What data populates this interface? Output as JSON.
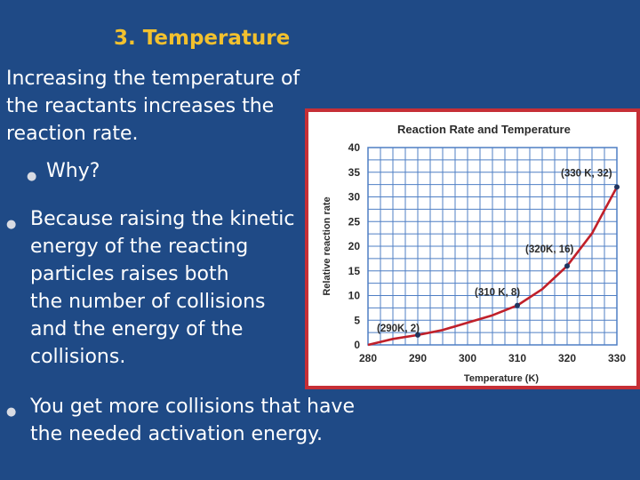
{
  "slide": {
    "title": "3. Temperature",
    "intro_lines": [
      "Increasing the temperature of",
      "the reactants increases the",
      "reaction rate."
    ],
    "why": "Why?",
    "because_lines": [
      "Because raising the kinetic",
      "energy  of the reacting",
      "particles raises both",
      "the number of collisions",
      "and the energy of the",
      "collisions."
    ],
    "more_lines": [
      "You get more collisions that have",
      "the needed activation energy."
    ]
  },
  "chart_data": {
    "type": "line",
    "title": "Reaction Rate and Temperature",
    "xlabel": "Temperature (K)",
    "ylabel": "Relative reaction rate",
    "xlim": [
      280,
      330
    ],
    "ylim": [
      0,
      40
    ],
    "x_ticks": [
      280,
      290,
      300,
      310,
      320,
      330
    ],
    "y_ticks": [
      0,
      5,
      10,
      15,
      20,
      25,
      30,
      35,
      40
    ],
    "grid": true,
    "series": [
      {
        "x": [
          280,
          285,
          290,
          295,
          300,
          305,
          310,
          315,
          320,
          325,
          330
        ],
        "y": [
          0,
          1.2,
          2,
          3,
          4.5,
          6,
          8,
          11.3,
          16,
          22.6,
          32
        ]
      }
    ],
    "points": [
      {
        "x": 290,
        "y": 2,
        "label": "(290K, 2)"
      },
      {
        "x": 310,
        "y": 8,
        "label": "(310 K, 8)"
      },
      {
        "x": 320,
        "y": 16,
        "label": "(320K, 16)"
      },
      {
        "x": 330,
        "y": 32,
        "label": "(330 K, 32)"
      }
    ],
    "colors": {
      "line": "#c0202a",
      "grid": "#4f7fc4",
      "point": "#1f3560"
    }
  }
}
